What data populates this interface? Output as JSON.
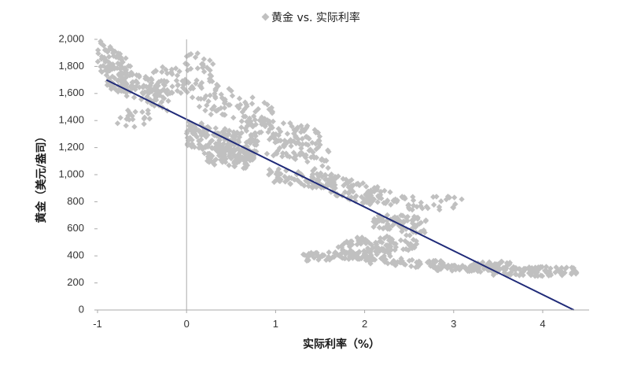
{
  "chart_data": {
    "type": "scatter",
    "legend": {
      "label": "黄金 vs. 实际利率",
      "position": "top-center"
    },
    "xlabel": "实际利率（%）",
    "ylabel": "黄金（美元/盎司）",
    "xlim": [
      -1,
      4.5
    ],
    "ylim": [
      0,
      2000
    ],
    "x_ticks": [
      "-1",
      "0",
      "1",
      "2",
      "3",
      "4"
    ],
    "y_ticks": [
      "0",
      "200",
      "400",
      "600",
      "800",
      "1,000",
      "1,200",
      "1,400",
      "1,600",
      "1,800",
      "2,000"
    ],
    "grid": false,
    "colors": {
      "points": "#c0c0c0",
      "trend": "#1f2a78",
      "axis": "#aaaaaa",
      "neg_tick": "#cc0000"
    },
    "series": [
      {
        "name": "黄金 vs. 实际利率",
        "clusters": [
          {
            "x": [
              -1.0,
              -0.6
            ],
            "y": [
              1650,
              1920
            ],
            "n": 90,
            "slope": -500
          },
          {
            "x": [
              -0.9,
              -0.2
            ],
            "y": [
              1550,
              1750
            ],
            "n": 110,
            "slope": -250
          },
          {
            "x": [
              -0.8,
              -0.4
            ],
            "y": [
              1350,
              1480
            ],
            "n": 20,
            "slope": 0
          },
          {
            "x": [
              -0.4,
              0.0
            ],
            "y": [
              1600,
              1800
            ],
            "n": 40,
            "slope": 0
          },
          {
            "x": [
              -0.05,
              0.3
            ],
            "y": [
              1500,
              1900
            ],
            "n": 50,
            "slope": -400
          },
          {
            "x": [
              0.0,
              0.8
            ],
            "y": [
              1150,
              1350
            ],
            "n": 190,
            "slope": -150
          },
          {
            "x": [
              0.2,
              0.7
            ],
            "y": [
              1060,
              1200
            ],
            "n": 70,
            "slope": -100
          },
          {
            "x": [
              0.3,
              1.0
            ],
            "y": [
              1380,
              1600
            ],
            "n": 70,
            "slope": -250
          },
          {
            "x": [
              0.6,
              1.5
            ],
            "y": [
              1250,
              1400
            ],
            "n": 80,
            "slope": -120
          },
          {
            "x": [
              0.9,
              1.6
            ],
            "y": [
              1100,
              1250
            ],
            "n": 60,
            "slope": -150
          },
          {
            "x": [
              0.9,
              1.7
            ],
            "y": [
              920,
              1020
            ],
            "n": 70,
            "slope": -80
          },
          {
            "x": [
              1.4,
              2.2
            ],
            "y": [
              820,
              980
            ],
            "n": 90,
            "slope": -180
          },
          {
            "x": [
              2.0,
              2.5
            ],
            "y": [
              760,
              880
            ],
            "n": 40,
            "slope": -60
          },
          {
            "x": [
              2.1,
              2.7
            ],
            "y": [
              580,
              700
            ],
            "n": 80,
            "slope": -60
          },
          {
            "x": [
              2.5,
              3.1
            ],
            "y": [
              740,
              840
            ],
            "n": 25,
            "slope": 0
          },
          {
            "x": [
              1.3,
              2.1
            ],
            "y": [
              370,
              430
            ],
            "n": 70,
            "slope": 20
          },
          {
            "x": [
              1.7,
              2.3
            ],
            "y": [
              380,
              520
            ],
            "n": 70,
            "slope": 60
          },
          {
            "x": [
              1.9,
              2.6
            ],
            "y": [
              430,
              560
            ],
            "n": 40,
            "slope": 20
          },
          {
            "x": [
              2.0,
              2.9
            ],
            "y": [
              320,
              380
            ],
            "n": 60,
            "slope": -40
          },
          {
            "x": [
              2.8,
              3.5
            ],
            "y": [
              280,
              330
            ],
            "n": 60,
            "slope": 0
          },
          {
            "x": [
              3.2,
              3.7
            ],
            "y": [
              300,
              360
            ],
            "n": 50,
            "slope": 0
          },
          {
            "x": [
              3.4,
              4.4
            ],
            "y": [
              250,
              320
            ],
            "n": 90,
            "slope": 0
          }
        ]
      }
    ],
    "trendline": {
      "x": [
        -0.9,
        4.35
      ],
      "y": [
        1700,
        0
      ]
    }
  }
}
